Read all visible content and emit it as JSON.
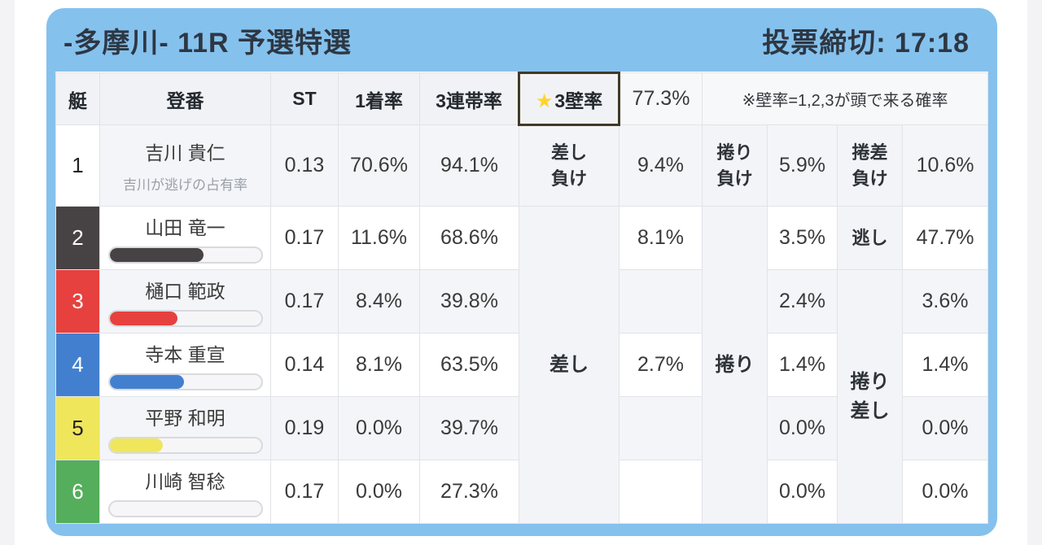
{
  "header": {
    "title": "-多摩川- 11R 予選特選",
    "deadline": "投票締切: 17:18"
  },
  "columns": {
    "boat": "艇",
    "reg": "登番",
    "st": "ST",
    "first_rate": "1着率",
    "top3_rate": "3連帯率",
    "wall_star": "★",
    "wall_label": "3壁率",
    "wall_value": "77.3%",
    "note": "※壁率=1,2,3が頭で来る確率"
  },
  "labels": {
    "sashi_make": [
      "差し",
      "負け"
    ],
    "makuri_make": [
      "捲り",
      "負け"
    ],
    "makurizashi_make": [
      "捲差",
      "負け"
    ],
    "sashi": "差し",
    "makuri": "捲り",
    "nigashi": "逃し",
    "makurizashi": [
      "捲り",
      "差し"
    ]
  },
  "colors": {
    "card_blue": "#85c1ed",
    "wall_button_orange": "#efa11f",
    "wall_star_yellow": "#ffd42a"
  },
  "racers": [
    {
      "boat": "1",
      "name": "吉川 貴仁",
      "subtitle": "吉川が逃げの占有率",
      "color": "#ffffff",
      "st": "0.13",
      "first": "70.6%",
      "top3": "94.1%",
      "sashi": "9.4%",
      "makuri": "5.9%",
      "third": "10.6%",
      "bar": null
    },
    {
      "boat": "2",
      "name": "山田 竜一",
      "color": "#474345",
      "st": "0.17",
      "first": "11.6%",
      "top3": "68.6%",
      "sashi": "8.1%",
      "makuri": "3.5%",
      "third": "47.7%",
      "bar": 62
    },
    {
      "boat": "3",
      "name": "樋口 範政",
      "color": "#e6413e",
      "st": "0.17",
      "first": "8.4%",
      "top3": "39.8%",
      "sashi": "",
      "makuri": "2.4%",
      "third": "3.6%",
      "bar": 45
    },
    {
      "boat": "4",
      "name": "寺本 重宣",
      "color": "#4280cf",
      "st": "0.14",
      "first": "8.1%",
      "top3": "63.5%",
      "sashi": "2.7%",
      "makuri": "1.4%",
      "third": "1.4%",
      "bar": 49
    },
    {
      "boat": "5",
      "name": "平野 和明",
      "color": "#efe65c",
      "st": "0.19",
      "first": "0.0%",
      "top3": "39.7%",
      "sashi": "",
      "makuri": "0.0%",
      "third": "0.0%",
      "bar": 35
    },
    {
      "boat": "6",
      "name": "川崎 智稔",
      "color": "#54ae5b",
      "st": "0.17",
      "first": "0.0%",
      "top3": "27.3%",
      "sashi": "",
      "makuri": "0.0%",
      "third": "0.0%",
      "bar": 0
    }
  ]
}
